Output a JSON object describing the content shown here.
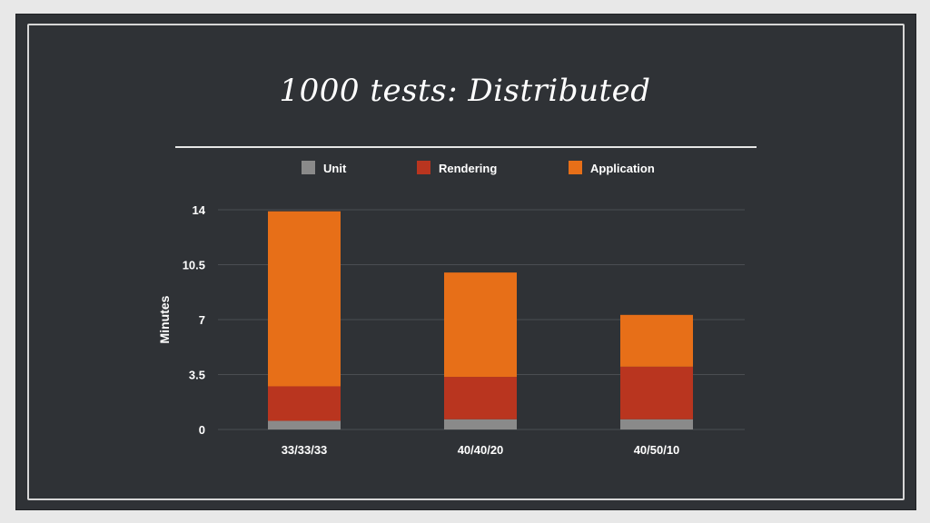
{
  "slide": {
    "title": "1000 tests: Distributed"
  },
  "colors": {
    "background": "#2f3236",
    "grid": "#4a4d52",
    "unit": "#8a8a8a",
    "rendering": "#b9351f",
    "application": "#e76f18"
  },
  "chart_data": {
    "type": "bar",
    "stacked": true,
    "title": "1000 tests: Distributed",
    "xlabel": "",
    "ylabel": "Minutes",
    "ylim": [
      0,
      14
    ],
    "yticks": [
      "0",
      "3.5",
      "7",
      "10.5",
      "14"
    ],
    "ytick_values": [
      0,
      3.5,
      7,
      10.5,
      14
    ],
    "categories": [
      "33/33/33",
      "40/40/20",
      "40/50/10"
    ],
    "series": [
      {
        "name": "Unit",
        "color": "#8a8a8a",
        "values": [
          0.55,
          0.65,
          0.65
        ]
      },
      {
        "name": "Rendering",
        "color": "#b9351f",
        "values": [
          2.2,
          2.7,
          3.35
        ]
      },
      {
        "name": "Application",
        "color": "#e76f18",
        "values": [
          11.15,
          6.65,
          3.3
        ]
      }
    ],
    "legend_position": "top",
    "grid": true
  }
}
